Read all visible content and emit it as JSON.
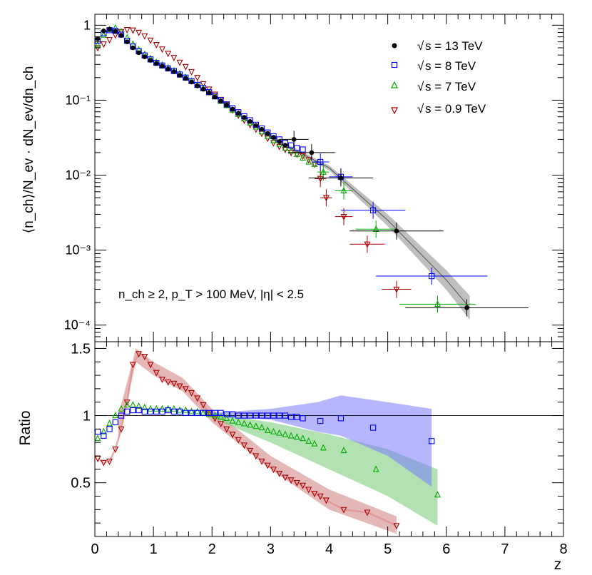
{
  "chart_data": [
    {
      "type": "scatter",
      "panel": "top",
      "xlabel": "",
      "ylabel": "⟨n_ch⟩/N_ev · dN_ev/dn_ch",
      "yscale": "log",
      "xlim": [
        0,
        8
      ],
      "ylim": [
        6e-05,
        1.4
      ],
      "y_tick_labels": [
        "10⁻⁴",
        "10⁻³",
        "10⁻²",
        "10⁻¹",
        "1"
      ],
      "annotation": "n_ch ≥ 2, p_T > 100 MeV, |η| < 2.5",
      "legend_position": "top-right",
      "series": [
        {
          "name": "√s = 13 TeV",
          "legend_text": "s = 13 TeV",
          "color": "#000000",
          "marker": "filled-circle",
          "x": [
            0.05,
            0.15,
            0.25,
            0.35,
            0.45,
            0.55,
            0.65,
            0.75,
            0.85,
            0.95,
            1.05,
            1.15,
            1.25,
            1.35,
            1.45,
            1.55,
            1.65,
            1.75,
            1.85,
            1.95,
            2.05,
            2.15,
            2.25,
            2.35,
            2.45,
            2.55,
            2.65,
            2.75,
            2.85,
            2.95,
            3.05,
            3.15,
            3.25,
            3.4,
            3.7,
            4.2,
            5.15,
            6.35
          ],
          "y": [
            0.66,
            0.84,
            0.88,
            0.83,
            0.73,
            0.6,
            0.5,
            0.43,
            0.38,
            0.34,
            0.31,
            0.285,
            0.26,
            0.24,
            0.215,
            0.195,
            0.175,
            0.155,
            0.14,
            0.125,
            0.11,
            0.097,
            0.086,
            0.076,
            0.067,
            0.059,
            0.052,
            0.046,
            0.041,
            0.036,
            0.032,
            0.028,
            0.025,
            0.03,
            0.02,
            0.0092,
            0.0018,
            0.00017
          ],
          "xerr": [
            0,
            0,
            0,
            0,
            0,
            0,
            0,
            0,
            0,
            0,
            0,
            0,
            0,
            0,
            0,
            0,
            0,
            0,
            0,
            0,
            0,
            0,
            0,
            0,
            0,
            0,
            0,
            0,
            0,
            0,
            0,
            0,
            0,
            0.25,
            0.4,
            0.55,
            0.8,
            1.05
          ],
          "band": {
            "x": [
              3.0,
              4.0,
              5.0,
              6.0,
              6.4
            ],
            "y": [
              0.032,
              0.0125,
              0.0025,
              0.0004,
              0.00017
            ],
            "rel_width": [
              0.05,
              0.08,
              0.2,
              0.35,
              0.45
            ],
            "color": "#b4b4b4"
          }
        },
        {
          "name": "√s = 8 TeV",
          "legend_text": "s = 8 TeV",
          "color": "#0000ff",
          "marker": "open-square",
          "x": [
            0.05,
            0.15,
            0.25,
            0.35,
            0.45,
            0.55,
            0.65,
            0.75,
            0.85,
            0.95,
            1.05,
            1.15,
            1.25,
            1.35,
            1.45,
            1.55,
            1.65,
            1.75,
            1.85,
            1.95,
            2.05,
            2.15,
            2.25,
            2.35,
            2.45,
            2.55,
            2.65,
            2.75,
            2.85,
            2.95,
            3.05,
            3.15,
            3.25,
            3.35,
            3.45,
            3.55,
            3.85,
            4.2,
            4.75,
            5.75
          ],
          "y": [
            0.62,
            0.78,
            0.86,
            0.84,
            0.75,
            0.62,
            0.52,
            0.45,
            0.395,
            0.35,
            0.315,
            0.29,
            0.265,
            0.245,
            0.22,
            0.2,
            0.18,
            0.16,
            0.145,
            0.128,
            0.113,
            0.1,
            0.088,
            0.078,
            0.069,
            0.061,
            0.054,
            0.047,
            0.042,
            0.037,
            0.033,
            0.03,
            0.027,
            0.025,
            0.023,
            0.022,
            0.015,
            0.0095,
            0.0034,
            0.00045
          ],
          "xerr": [
            0,
            0,
            0,
            0,
            0,
            0,
            0,
            0,
            0,
            0,
            0,
            0,
            0,
            0,
            0,
            0,
            0,
            0,
            0,
            0,
            0,
            0,
            0,
            0,
            0,
            0,
            0,
            0,
            0,
            0,
            0,
            0,
            0,
            0,
            0,
            0,
            0.15,
            0.2,
            0.55,
            0.95
          ]
        },
        {
          "name": "√s = 7 TeV",
          "legend_text": "s = 7 TeV",
          "color": "#00aa00",
          "marker": "open-triangle-up",
          "x": [
            0.05,
            0.15,
            0.25,
            0.35,
            0.45,
            0.55,
            0.65,
            0.75,
            0.85,
            0.95,
            1.05,
            1.15,
            1.25,
            1.35,
            1.45,
            1.55,
            1.65,
            1.75,
            1.85,
            1.95,
            2.05,
            2.15,
            2.25,
            2.35,
            2.45,
            2.55,
            2.65,
            2.75,
            2.85,
            2.95,
            3.05,
            3.15,
            3.25,
            3.35,
            3.45,
            3.55,
            3.65,
            3.75,
            3.9,
            4.25,
            4.8,
            5.85
          ],
          "y": [
            0.55,
            0.74,
            0.88,
            0.92,
            0.82,
            0.68,
            0.56,
            0.47,
            0.41,
            0.36,
            0.32,
            0.295,
            0.27,
            0.248,
            0.224,
            0.202,
            0.18,
            0.16,
            0.143,
            0.127,
            0.111,
            0.097,
            0.085,
            0.074,
            0.065,
            0.057,
            0.05,
            0.044,
            0.038,
            0.033,
            0.029,
            0.026,
            0.023,
            0.021,
            0.019,
            0.017,
            0.015,
            0.014,
            0.011,
            0.0062,
            0.0019,
            0.00019
          ],
          "xerr": [
            0,
            0,
            0,
            0,
            0,
            0,
            0,
            0,
            0,
            0,
            0,
            0,
            0,
            0,
            0,
            0,
            0,
            0,
            0,
            0,
            0,
            0,
            0,
            0,
            0,
            0,
            0,
            0,
            0,
            0,
            0,
            0,
            0,
            0,
            0,
            0,
            0,
            0,
            0.1,
            0.15,
            0.35,
            0.65
          ]
        },
        {
          "name": "√s = 0.9 TeV",
          "legend_text": "s = 0.9 TeV",
          "color": "#aa0000",
          "marker": "open-triangle-down",
          "x": [
            0.05,
            0.15,
            0.25,
            0.35,
            0.45,
            0.55,
            0.65,
            0.75,
            0.85,
            0.95,
            1.05,
            1.15,
            1.25,
            1.35,
            1.45,
            1.55,
            1.65,
            1.75,
            1.85,
            1.95,
            2.05,
            2.15,
            2.25,
            2.35,
            2.45,
            2.55,
            2.65,
            2.75,
            2.85,
            2.95,
            3.05,
            3.15,
            3.25,
            3.35,
            3.45,
            3.55,
            3.65,
            3.75,
            3.85,
            3.95,
            4.25,
            4.65,
            5.15
          ],
          "y": [
            0.5,
            0.56,
            0.64,
            0.74,
            0.82,
            0.87,
            0.86,
            0.8,
            0.72,
            0.63,
            0.55,
            0.48,
            0.42,
            0.37,
            0.32,
            0.28,
            0.24,
            0.2,
            0.165,
            0.14,
            0.12,
            0.102,
            0.087,
            0.074,
            0.063,
            0.054,
            0.047,
            0.041,
            0.036,
            0.031,
            0.027,
            0.024,
            0.022,
            0.02,
            0.019,
            0.018,
            0.016,
            0.014,
            0.009,
            0.005,
            0.0028,
            0.0012,
            0.0003
          ],
          "xerr": [
            0,
            0,
            0,
            0,
            0,
            0,
            0,
            0,
            0,
            0,
            0,
            0,
            0,
            0,
            0,
            0,
            0,
            0,
            0,
            0,
            0,
            0,
            0,
            0,
            0,
            0,
            0,
            0,
            0,
            0,
            0,
            0,
            0,
            0,
            0,
            0,
            0,
            0,
            0.1,
            0.1,
            0.15,
            0.3,
            0.25
          ]
        }
      ]
    },
    {
      "type": "scatter",
      "panel": "bottom",
      "xlabel": "z",
      "ylabel": "Ratio",
      "xlim": [
        0,
        8
      ],
      "ylim": [
        0.1,
        1.55
      ],
      "x_tick_labels": [
        "0",
        "1",
        "2",
        "3",
        "4",
        "5",
        "6",
        "7",
        "8"
      ],
      "y_tick_labels": [
        "0.5",
        "1",
        "1.5"
      ],
      "reference_line": 1,
      "series": [
        {
          "name": "√s = 8 TeV ratio",
          "color": "#0000ff",
          "marker": "open-square",
          "x": [
            0.05,
            0.15,
            0.25,
            0.35,
            0.45,
            0.55,
            0.65,
            0.75,
            0.85,
            0.95,
            1.05,
            1.15,
            1.25,
            1.35,
            1.45,
            1.55,
            1.65,
            1.75,
            1.85,
            1.95,
            2.05,
            2.15,
            2.25,
            2.35,
            2.45,
            2.55,
            2.65,
            2.75,
            2.85,
            2.95,
            3.05,
            3.15,
            3.25,
            3.35,
            3.45,
            3.55,
            3.85,
            4.2,
            4.75,
            5.75
          ],
          "y": [
            0.88,
            0.85,
            0.9,
            0.95,
            1.0,
            1.03,
            1.04,
            1.04,
            1.03,
            1.03,
            1.03,
            1.03,
            1.04,
            1.03,
            1.03,
            1.02,
            1.02,
            1.02,
            1.02,
            1.02,
            1.02,
            1.02,
            1.01,
            1.01,
            1.0,
            1.0,
            1.0,
            1.0,
            1.0,
            1.0,
            1.0,
            1.0,
            1.0,
            0.99,
            0.99,
            0.98,
            0.96,
            0.98,
            0.91,
            0.81
          ],
          "band": {
            "x": [
              2.0,
              3.0,
              3.8,
              4.2,
              5.0,
              5.75
            ],
            "upper": [
              1.02,
              1.05,
              1.1,
              1.15,
              1.1,
              1.05
            ],
            "lower": [
              1.0,
              0.97,
              0.88,
              0.85,
              0.7,
              0.47
            ],
            "color": "#7a7aff",
            "opacity": 0.55
          }
        },
        {
          "name": "√s = 7 TeV ratio",
          "color": "#00aa00",
          "marker": "open-triangle-up",
          "x": [
            0.05,
            0.15,
            0.25,
            0.35,
            0.45,
            0.55,
            0.65,
            0.75,
            0.85,
            0.95,
            1.05,
            1.15,
            1.25,
            1.35,
            1.45,
            1.55,
            1.65,
            1.75,
            1.85,
            1.95,
            2.05,
            2.15,
            2.25,
            2.35,
            2.45,
            2.55,
            2.65,
            2.75,
            2.85,
            2.95,
            3.05,
            3.15,
            3.25,
            3.35,
            3.45,
            3.55,
            3.65,
            3.75,
            3.9,
            4.25,
            4.8,
            5.85
          ],
          "y": [
            0.83,
            0.88,
            0.94,
            1.0,
            1.05,
            1.08,
            1.08,
            1.07,
            1.06,
            1.05,
            1.05,
            1.05,
            1.05,
            1.05,
            1.04,
            1.04,
            1.03,
            1.03,
            1.02,
            1.01,
            1.0,
            0.99,
            0.98,
            0.96,
            0.95,
            0.94,
            0.93,
            0.92,
            0.91,
            0.89,
            0.88,
            0.87,
            0.86,
            0.85,
            0.84,
            0.83,
            0.81,
            0.79,
            0.76,
            0.74,
            0.6,
            0.41
          ],
          "band": {
            "x": [
              2.0,
              3.0,
              4.0,
              5.0,
              5.85
            ],
            "upper": [
              1.02,
              0.95,
              0.86,
              0.75,
              0.6
            ],
            "lower": [
              0.98,
              0.8,
              0.6,
              0.4,
              0.18
            ],
            "color": "#7fce7f",
            "opacity": 0.6
          }
        },
        {
          "name": "√s = 0.9 TeV ratio",
          "color": "#aa0000",
          "marker": "open-triangle-down",
          "x": [
            0.05,
            0.15,
            0.25,
            0.35,
            0.45,
            0.55,
            0.65,
            0.75,
            0.85,
            0.95,
            1.05,
            1.15,
            1.25,
            1.35,
            1.45,
            1.55,
            1.65,
            1.75,
            1.85,
            1.95,
            2.05,
            2.15,
            2.25,
            2.35,
            2.45,
            2.55,
            2.65,
            2.75,
            2.85,
            2.95,
            3.05,
            3.15,
            3.25,
            3.35,
            3.45,
            3.55,
            3.65,
            3.75,
            3.85,
            3.95,
            4.25,
            4.65,
            5.15
          ],
          "y": [
            0.68,
            0.65,
            0.66,
            0.75,
            0.9,
            1.1,
            1.38,
            1.46,
            1.44,
            1.38,
            1.32,
            1.27,
            1.25,
            1.24,
            1.22,
            1.2,
            1.17,
            1.13,
            1.08,
            1.02,
            0.98,
            0.94,
            0.9,
            0.86,
            0.82,
            0.78,
            0.74,
            0.7,
            0.66,
            0.63,
            0.6,
            0.57,
            0.54,
            0.52,
            0.5,
            0.48,
            0.45,
            0.42,
            0.4,
            0.37,
            0.3,
            0.28,
            0.18
          ],
          "band": {
            "x": [
              0.4,
              0.7,
              1.0,
              1.5,
              2.0,
              3.0,
              4.0,
              5.15
            ],
            "upper": [
              1.0,
              1.5,
              1.4,
              1.28,
              1.05,
              0.7,
              0.45,
              0.25
            ],
            "lower": [
              0.8,
              1.4,
              1.3,
              1.18,
              0.95,
              0.6,
              0.3,
              0.12
            ],
            "color": "#d48888",
            "opacity": 0.6
          }
        }
      ]
    }
  ]
}
